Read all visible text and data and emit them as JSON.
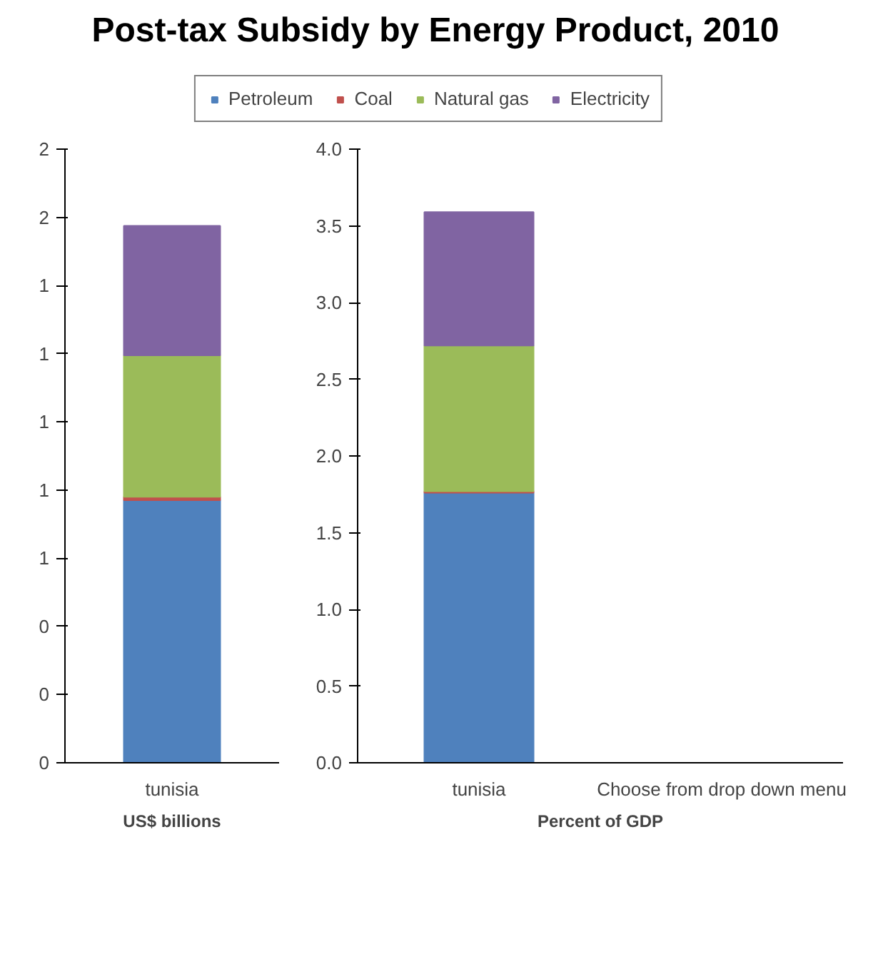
{
  "chart_data": [
    {
      "type": "bar",
      "title": "Post-tax Subsidy by Energy Product, 2010",
      "xlabel": "US$ billions",
      "stacked": true,
      "categories": [
        "tunisia"
      ],
      "legend": "top",
      "series": [
        {
          "name": "Petroleum",
          "color": "#4f81bd",
          "values": [
            0.77
          ]
        },
        {
          "name": "Coal",
          "color": "#c0504d",
          "values": [
            0.01
          ]
        },
        {
          "name": "Natural gas",
          "color": "#9bbb59",
          "values": [
            0.415
          ]
        },
        {
          "name": "Electricity",
          "color": "#8064a2",
          "values": [
            0.38
          ]
        }
      ],
      "ylim": [
        0,
        1.8
      ],
      "yticks": [
        0,
        {
          "value": 0.2,
          "label": "0"
        },
        {
          "value": 0.4,
          "label": "0"
        },
        {
          "value": 0.6,
          "label": "1"
        },
        {
          "value": 0.8,
          "label": "1"
        },
        {
          "value": 1.0,
          "label": "1"
        },
        {
          "value": 1.2,
          "label": "1"
        },
        {
          "value": 1.4,
          "label": "1"
        },
        {
          "value": 1.6,
          "label": "2"
        },
        {
          "value": 1.8,
          "label": "2"
        }
      ],
      "grid": false
    },
    {
      "type": "bar",
      "xlabel": "Percent of GDP",
      "stacked": true,
      "categories": [
        "tunisia",
        "Choose from drop down menu"
      ],
      "series": [
        {
          "color": "#4f81bd",
          "values": [
            1.76,
            null
          ]
        },
        {
          "color": "#c0504d",
          "values": [
            0.01,
            null
          ]
        },
        {
          "color": "#9bbb59",
          "values": [
            0.95,
            null
          ]
        },
        {
          "color": "#8064a2",
          "values": [
            0.87,
            null
          ]
        }
      ],
      "ylim": [
        0,
        4.0
      ],
      "yticks": [
        {
          "value": 0,
          "label": "0.0"
        },
        {
          "value": 0.5,
          "label": "0.5"
        },
        {
          "value": 1.0,
          "label": "1.0"
        },
        {
          "value": 1.5,
          "label": "1.5"
        },
        {
          "value": 2.0,
          "label": "2.0"
        },
        {
          "value": 2.5,
          "label": "2.5"
        },
        {
          "value": 3.0,
          "label": "3.0"
        },
        {
          "value": 3.5,
          "label": "3.5"
        },
        {
          "value": 4.0,
          "label": "4.0"
        }
      ],
      "grid": false
    }
  ]
}
